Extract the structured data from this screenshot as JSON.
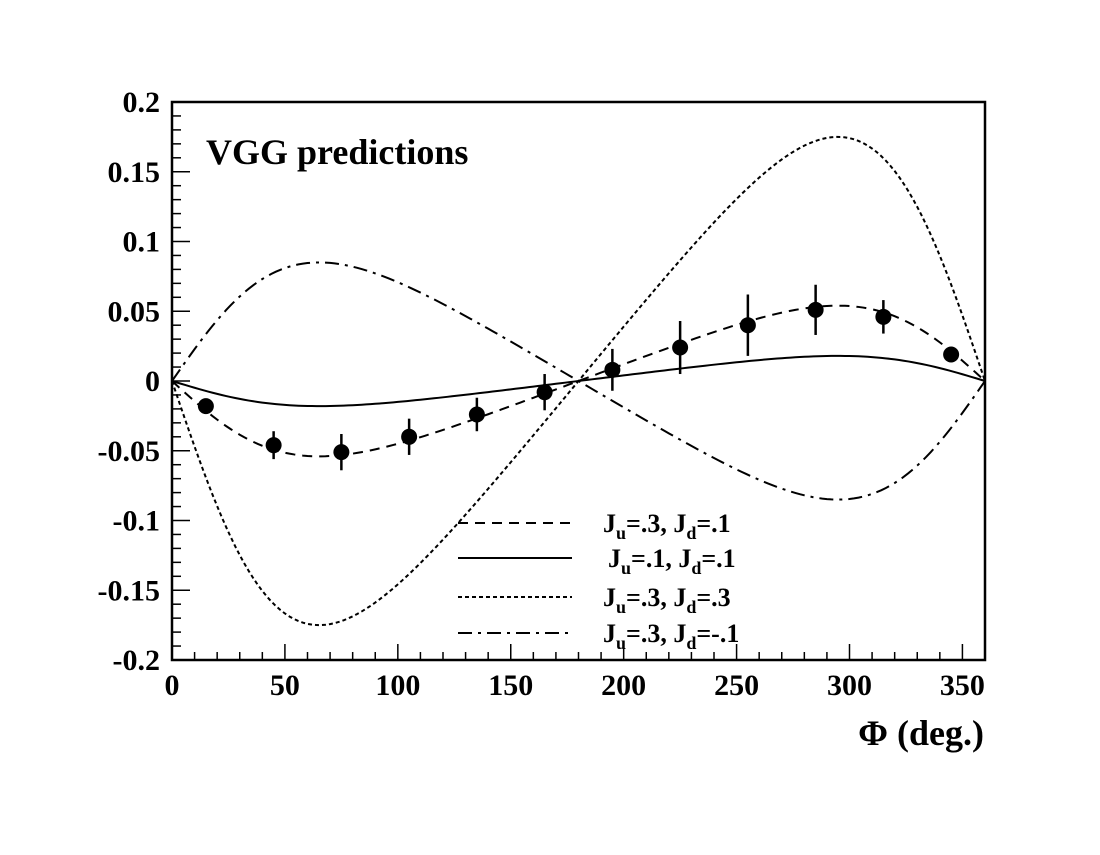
{
  "chart_data": {
    "type": "line",
    "title": "VGG predictions",
    "xlabel": "Φ (deg.)",
    "ylabel": "",
    "xlim": [
      0,
      360
    ],
    "ylim": [
      -0.2,
      0.2
    ],
    "x_ticks": [
      0,
      50,
      100,
      150,
      200,
      250,
      300,
      350
    ],
    "x_tick_labels": [
      "0",
      "50",
      "100",
      "150",
      "200",
      "250",
      "300",
      "350"
    ],
    "y_ticks": [
      0.2,
      0.15,
      0.1,
      0.05,
      0,
      -0.05,
      -0.1,
      -0.15,
      -0.2
    ],
    "y_tick_labels": [
      "0.2",
      "0.15",
      "0.1",
      "0.05",
      "0",
      "-0.05",
      "-0.1",
      "-0.15",
      "-0.2"
    ],
    "grid": false,
    "legend_position": "bottom-right",
    "series": [
      {
        "name": "J_u=.3, J_d=.1",
        "label_parts": {
          "a": "J",
          "a_sub": "u",
          "b": "=.3, J",
          "b_sub": "d",
          "c": "=.1"
        },
        "style": "dashed",
        "model": "asym",
        "amplitude": 0.054
      },
      {
        "name": "J_u=.1, J_d=.1",
        "label_parts": {
          "a": "J",
          "a_sub": "u",
          "b": "=.1, J",
          "b_sub": "d",
          "c": "=.1"
        },
        "style": "solid",
        "model": "asym",
        "amplitude": 0.018
      },
      {
        "name": "J_u=.3, J_d=.3",
        "label_parts": {
          "a": "J",
          "a_sub": "u",
          "b": "=.3, J",
          "b_sub": "d",
          "c": "=.3"
        },
        "style": "dotted",
        "model": "asym",
        "amplitude": 0.175
      },
      {
        "name": "J_u=.3, J_d=-.1",
        "label_parts": {
          "a": "J",
          "a_sub": "u",
          "b": "=.3, J",
          "b_sub": "d",
          "c": "=-.1"
        },
        "style": "dashdot",
        "model": "asym",
        "amplitude": -0.085
      }
    ],
    "data_points": {
      "x": [
        15,
        45,
        75,
        105,
        135,
        165,
        195,
        225,
        255,
        285,
        315,
        345
      ],
      "y": [
        -0.018,
        -0.046,
        -0.051,
        -0.04,
        -0.024,
        -0.008,
        0.008,
        0.024,
        0.04,
        0.051,
        0.046,
        0.019
      ],
      "yerr": [
        0.003,
        0.01,
        0.013,
        0.013,
        0.012,
        0.013,
        0.015,
        0.019,
        0.022,
        0.018,
        0.012,
        0.003
      ]
    }
  }
}
